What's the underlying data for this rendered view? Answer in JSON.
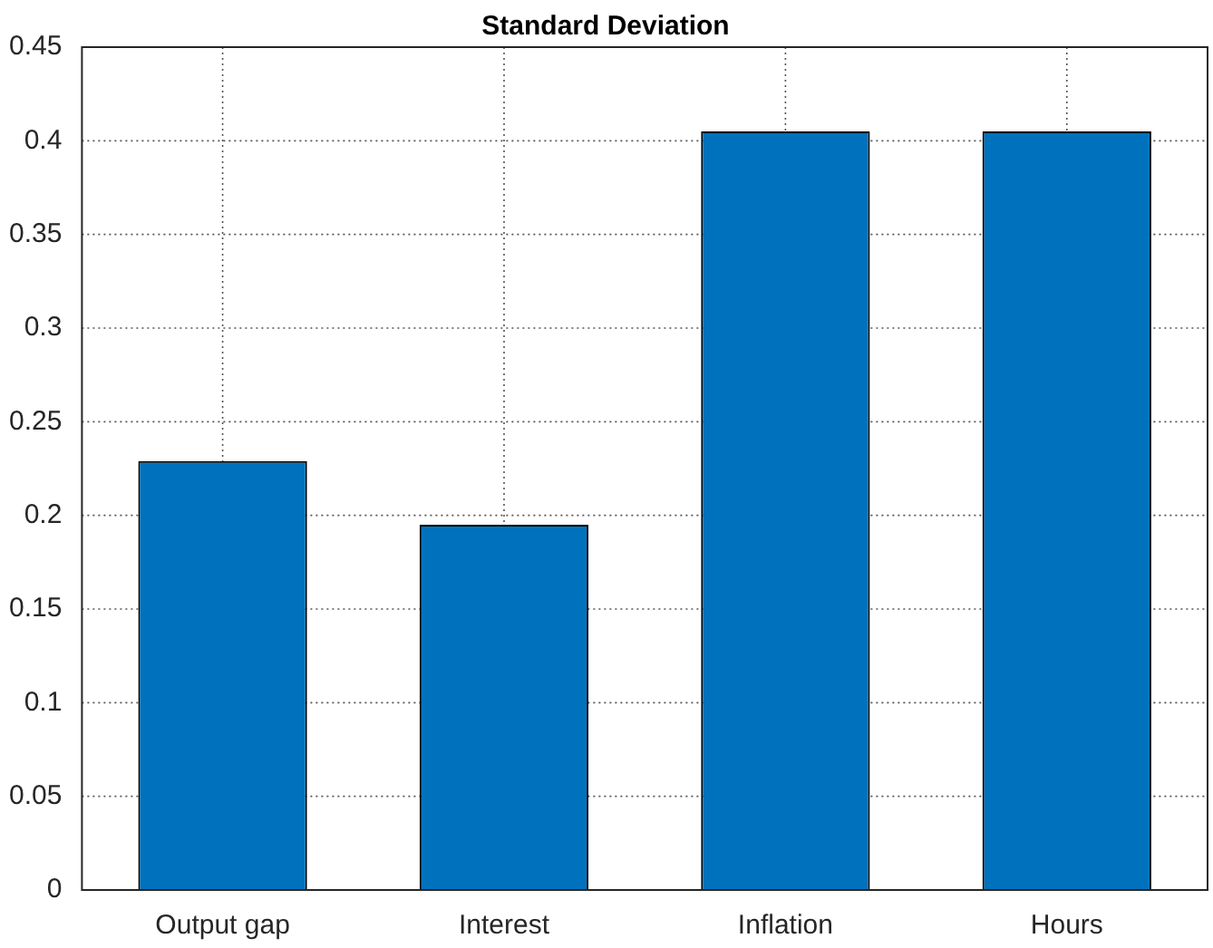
{
  "chart_data": {
    "type": "bar",
    "title": "Standard Deviation",
    "categories": [
      "Output gap",
      "Interest",
      "Inflation",
      "Hours"
    ],
    "values": [
      0.229,
      0.195,
      0.405,
      0.405
    ],
    "color": "#0072bd",
    "ylim": [
      0,
      0.45
    ],
    "yticks": [
      0,
      0.05,
      0.1,
      0.15,
      0.2,
      0.25,
      0.3,
      0.35,
      0.4,
      0.45
    ],
    "grid": true
  }
}
